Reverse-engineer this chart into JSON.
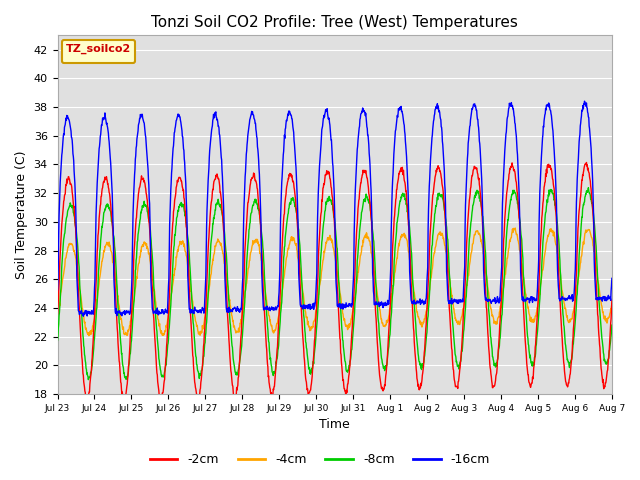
{
  "title": "Tonzi Soil CO2 Profile: Tree (West) Temperatures",
  "xlabel": "Time",
  "ylabel": "Soil Temperature (C)",
  "ylim": [
    18,
    43
  ],
  "yticks": [
    18,
    20,
    22,
    24,
    26,
    28,
    30,
    32,
    34,
    36,
    38,
    40,
    42
  ],
  "colors": {
    "-2cm": "#ff0000",
    "-4cm": "#ffa500",
    "-8cm": "#00cc00",
    "-16cm": "#0000ff"
  },
  "legend_box_color": "#ffffcc",
  "legend_box_edge": "#cc9900",
  "background_color": "#e0e0e0",
  "num_points": 1440,
  "num_days": 15
}
